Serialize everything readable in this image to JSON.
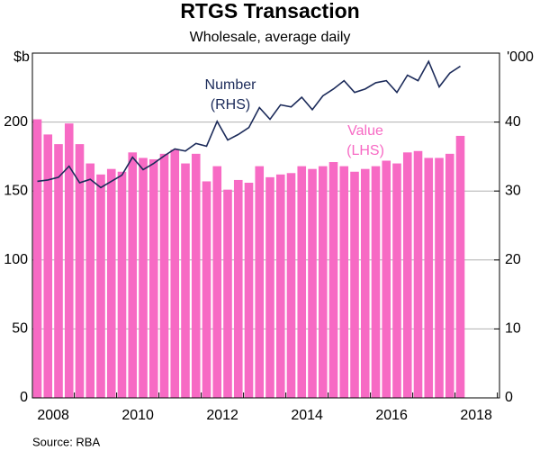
{
  "chart_data": {
    "type": "bar_line",
    "title": "RTGS Transaction",
    "subtitle": "Wholesale, average daily",
    "y_label": "$b",
    "y2_label": "'000",
    "source": "Source:    RBA",
    "x_labels": [
      "2008",
      "2010",
      "2012",
      "2014",
      "2016",
      "2018"
    ],
    "ylim": [
      0,
      250
    ],
    "yticks": [
      0,
      50,
      100,
      150,
      200
    ],
    "y2lim": [
      0,
      50
    ],
    "y2ticks": [
      0,
      10,
      20,
      30,
      40
    ],
    "grid": true,
    "series": [
      {
        "name": "Value",
        "annotation": [
          "Value",
          "(LHS)"
        ],
        "kind": "bar",
        "color": "#f76ac4",
        "values": [
          202,
          191,
          184,
          199,
          184,
          170,
          162,
          166,
          164,
          178,
          174,
          173,
          177,
          180,
          170,
          177,
          157,
          168,
          151,
          158,
          156,
          168,
          160,
          162,
          163,
          168,
          166,
          168,
          171,
          168,
          164,
          166,
          168,
          172,
          170,
          178,
          179,
          174,
          174,
          177,
          190
        ]
      },
      {
        "name": "Number",
        "annotation": [
          "Number",
          "(RHS)"
        ],
        "kind": "line",
        "axis": "y2",
        "color": "#1c2b5a",
        "values": [
          31.4,
          31.6,
          32.0,
          33.6,
          31.2,
          31.7,
          30.5,
          31.4,
          32.3,
          34.9,
          33.1,
          34.0,
          35.1,
          36.1,
          35.8,
          36.9,
          36.5,
          40.1,
          37.4,
          38.2,
          39.2,
          42.1,
          40.4,
          42.5,
          42.2,
          43.6,
          41.8,
          43.8,
          44.8,
          46.0,
          44.3,
          44.8,
          45.7,
          46.0,
          44.3,
          46.8,
          46.0,
          48.8,
          45.1,
          47.1,
          48.1
        ]
      }
    ]
  }
}
